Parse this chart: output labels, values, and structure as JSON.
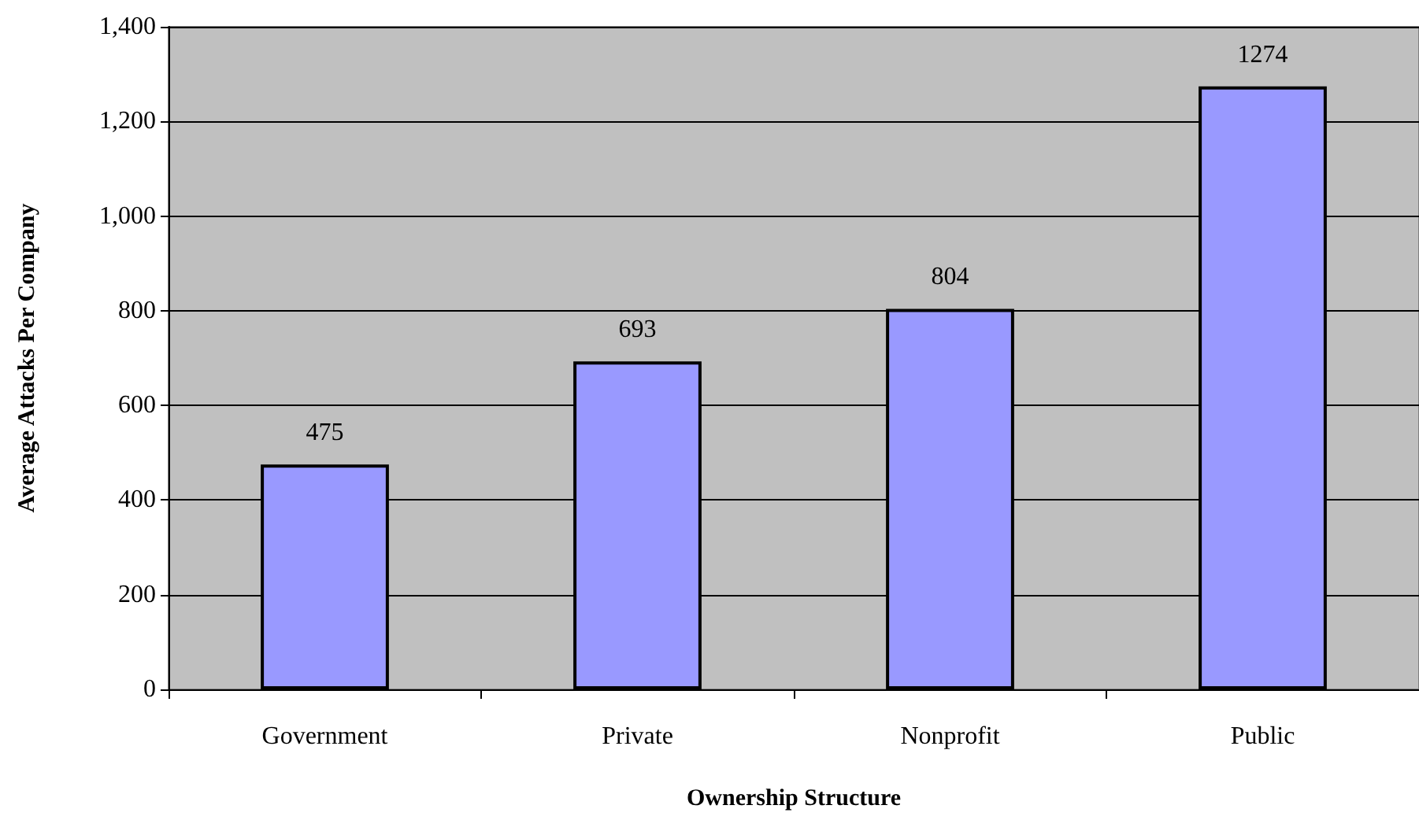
{
  "chart_data": {
    "type": "bar",
    "xlabel": "Ownership Structure",
    "ylabel": "Average Attacks Per Company",
    "categories": [
      "Government",
      "Private",
      "Nonprofit",
      "Public"
    ],
    "values": [
      475,
      693,
      804,
      1274
    ],
    "color": "#9999ff",
    "ylim": [
      0,
      1400
    ],
    "yticks": [
      0,
      200,
      400,
      600,
      800,
      {
        "value": 1000,
        "label": "1,000"
      },
      {
        "value": 1200,
        "label": "1,200"
      },
      {
        "value": 1400,
        "label": "1,400"
      }
    ],
    "grid": "y",
    "data_labels": true
  }
}
